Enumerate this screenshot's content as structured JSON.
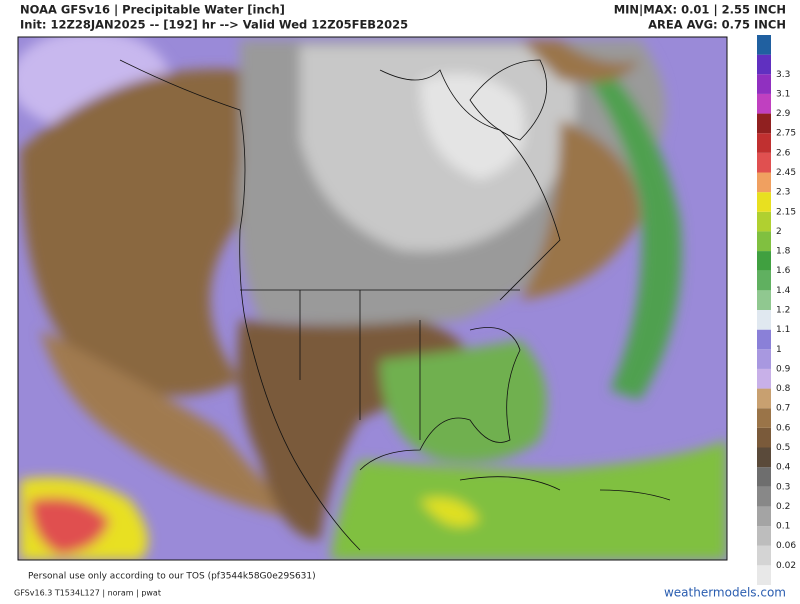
{
  "header": {
    "title": "NOAA GFSv16 | Precipitable Water [inch]",
    "init": "Init: 12Z28JAN2025 -- [192] hr --> Valid Wed 12Z05FEB2025",
    "minmax": "MIN|MAX: 0.01 | 2.55 INCH",
    "area_avg": "AREA AVG: 0.75 INCH"
  },
  "colorbar": {
    "labels": [
      "0.02",
      "0.06",
      "0.1",
      "0.2",
      "0.3",
      "0.4",
      "0.5",
      "0.6",
      "0.7",
      "0.8",
      "0.9",
      "1",
      "1.1",
      "1.2",
      "1.4",
      "1.6",
      "1.8",
      "2",
      "2.15",
      "2.3",
      "2.45",
      "2.6",
      "2.75",
      "2.9",
      "3.1",
      "3.3"
    ],
    "colors": [
      "#e8e8e8",
      "#d4d4d4",
      "#bdbdbd",
      "#a4a4a4",
      "#888888",
      "#6e6e6e",
      "#5a4a3a",
      "#7a5a3a",
      "#9a7448",
      "#c8a070",
      "#c8b0e8",
      "#a898e0",
      "#8a80d8",
      "#e0e8f0",
      "#90c890",
      "#60b060",
      "#40a040",
      "#80c040",
      "#b0d030",
      "#e8e020",
      "#f0a060",
      "#e05050",
      "#c03030",
      "#902020",
      "#c040c0",
      "#9030c0",
      "#6030c0",
      "#2060a0"
    ]
  },
  "footer": {
    "personal_use": "Personal use only according to our TOS (pf3544k58G0e29S631)",
    "model_info": "GFSv16.3 T1534L127 | noram | pwat",
    "site": "weathermodels.com"
  }
}
